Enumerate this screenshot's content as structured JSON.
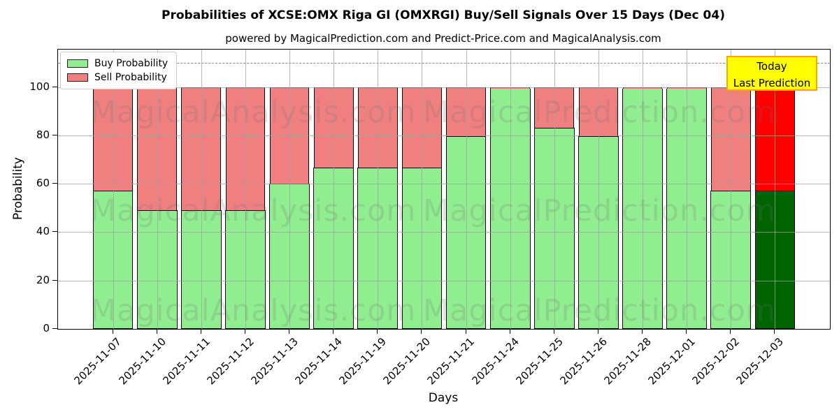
{
  "title": "Probabilities of XCSE:OMX Riga GI (OMXRGI) Buy/Sell Signals Over 15 Days (Dec 04)",
  "subtitle": "powered by MagicalPrediction.com and Predict-Price.com and MagicalAnalysis.com",
  "legend": {
    "buy_label": "Buy Probability",
    "sell_label": "Sell Probability"
  },
  "annotation": {
    "line1": "Today",
    "line2": "Last Prediction",
    "bg_color": "#ffff00",
    "border_color": "#ffa500"
  },
  "axes": {
    "ylabel": "Probability",
    "xlabel": "Days",
    "yticks": [
      0,
      20,
      40,
      60,
      80,
      100
    ],
    "ylim": [
      0,
      115.5
    ],
    "dashed_line_y": 110,
    "grid": true,
    "legend_position": "upper left"
  },
  "watermarks": {
    "left_text": "MagicalAnalysis.com",
    "right_text": "MagicalPrediction.com"
  },
  "colors": {
    "buy": "#90ee90",
    "sell": "#f08080",
    "today_buy": "#006400",
    "today_sell": "#ff0000",
    "grid": "#a0a0a0",
    "dashed_line": "#8a8a8a"
  },
  "chart_data": {
    "type": "bar",
    "stacked": true,
    "title": "Probabilities of XCSE:OMX Riga GI (OMXRGI) Buy/Sell Signals Over 15 Days (Dec 04)",
    "xlabel": "Days",
    "ylabel": "Probability",
    "ylim": [
      0,
      115.5
    ],
    "categories": [
      "2025-11-07",
      "2025-11-10",
      "2025-11-11",
      "2025-11-12",
      "2025-11-13",
      "2025-11-14",
      "2025-11-19",
      "2025-11-20",
      "2025-11-21",
      "2025-11-24",
      "2025-11-25",
      "2025-11-26",
      "2025-11-28",
      "2025-12-01",
      "2025-12-02",
      "2025-12-03"
    ],
    "series": [
      {
        "name": "Buy Probability",
        "values": [
          57.1,
          49,
          49,
          49,
          60,
          66.7,
          66.7,
          66.7,
          80,
          100,
          83.3,
          80,
          100,
          100,
          57.1,
          57.1
        ]
      },
      {
        "name": "Sell Probability",
        "values": [
          42.9,
          51,
          51,
          51,
          40,
          33.3,
          33.3,
          33.3,
          20,
          0,
          16.7,
          20,
          0,
          0,
          42.9,
          42.9
        ]
      }
    ],
    "today_index": 15
  }
}
